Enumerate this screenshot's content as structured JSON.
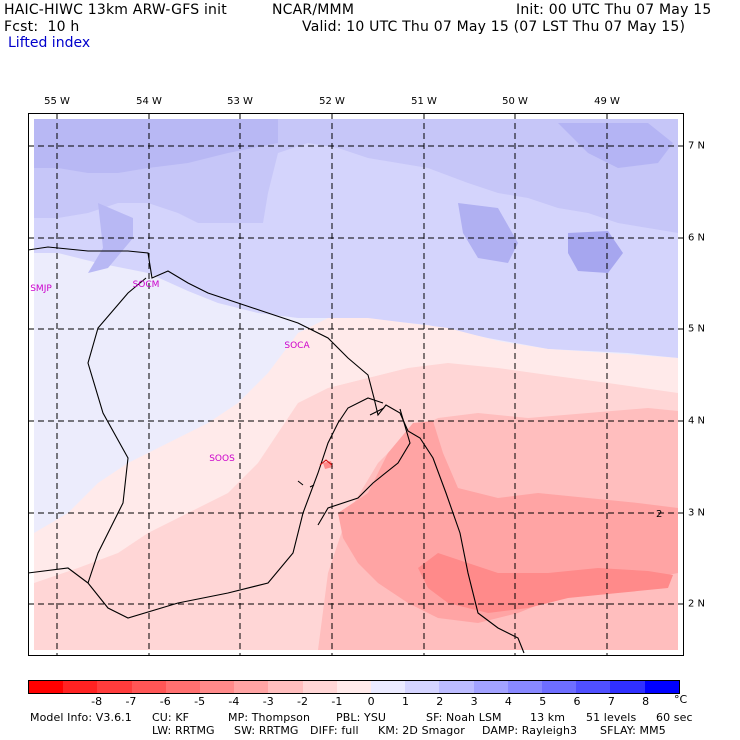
{
  "header": {
    "model": "HAIC-HIWC 13km ARW-GFS init",
    "org": "NCAR/MMM",
    "init": "Init: 00 UTC Thu 07 May 15",
    "fcst": "Fcst:  10 h",
    "valid": "Valid: 10 UTC Thu 07 May 15 (07 LST Thu 07 May 15)",
    "field": "Lifted index"
  },
  "map": {
    "lon_labels": [
      "55 W",
      "54 W",
      "53 W",
      "52 W",
      "51 W",
      "50 W",
      "49 W"
    ],
    "lat_labels": [
      "7 N",
      "6 N",
      "5 N",
      "4 N",
      "3 N",
      "2 N"
    ],
    "stations": [
      "SMJP",
      "SOCM",
      "SOCA",
      "SOOS"
    ],
    "contour_label": "2"
  },
  "colorbar": {
    "colors": [
      "#ff0000",
      "#ff2222",
      "#ff3c3c",
      "#ff5656",
      "#ff7070",
      "#ff8a8a",
      "#ffa4a4",
      "#ffbebe",
      "#ffd6d6",
      "#ffeaea",
      "#eaeaff",
      "#d4d4ff",
      "#bcbcff",
      "#a2a2ff",
      "#8888ff",
      "#6e6eff",
      "#5050ff",
      "#3030ff",
      "#0000ff"
    ],
    "labels": [
      "-8",
      "-7",
      "-6",
      "-5",
      "-4",
      "-3",
      "-2",
      "-1",
      "0",
      "1",
      "2",
      "3",
      "4",
      "5",
      "6",
      "7",
      "8"
    ],
    "unit": "°C"
  },
  "footer": {
    "line1": [
      "Model Info: V3.6.1",
      "CU: KF",
      "MP: Thompson",
      "PBL: YSU",
      "SF: Noah LSM",
      "13 km",
      "51 levels",
      "60 sec"
    ],
    "line2": [
      "LW: RRTMG",
      "SW: RRTMG",
      "DIFF: full",
      "KM: 2D Smagor",
      "DAMP: Rayleigh3",
      "SFLAY: MM5"
    ]
  }
}
